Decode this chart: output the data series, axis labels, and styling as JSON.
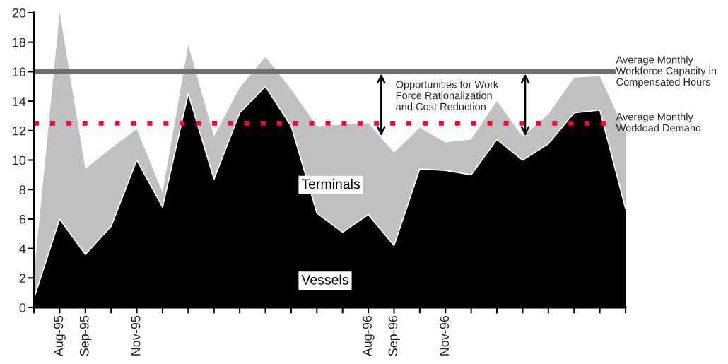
{
  "chart_data": {
    "type": "area",
    "stacked": true,
    "categories": [
      null,
      "Aug-95",
      "Sep-95",
      null,
      "Nov-95",
      null,
      null,
      null,
      null,
      null,
      null,
      null,
      null,
      "Aug-96",
      "Sep-96",
      null,
      "Nov-96",
      null,
      null,
      null,
      null,
      null,
      null,
      null
    ],
    "series": [
      {
        "name": "Vessels",
        "color": "#000000",
        "values": [
          0.6,
          6.0,
          3.6,
          5.5,
          10.0,
          6.8,
          14.5,
          8.7,
          13.2,
          15.0,
          12.3,
          6.4,
          5.1,
          6.3,
          4.2,
          9.4,
          9.3,
          9.0,
          11.4,
          10.0,
          11.1,
          13.2,
          13.4,
          6.7
        ]
      },
      {
        "name": "Terminals",
        "color": "#c0c0c0",
        "values": [
          1.6,
          14.0,
          5.8,
          5.3,
          2.1,
          1.0,
          3.3,
          2.9,
          1.7,
          2.0,
          2.5,
          5.9,
          7.3,
          6.2,
          6.3,
          2.8,
          1.9,
          2.4,
          2.6,
          1.6,
          2.0,
          2.4,
          2.3,
          5.2
        ]
      }
    ],
    "ylim": [
      0,
      20
    ],
    "yticks": [
      0,
      2,
      4,
      6,
      8,
      10,
      12,
      14,
      16,
      18,
      20
    ],
    "ref_lines": [
      {
        "axis": "y",
        "value": 16,
        "label": "Average Monthly\nWorkforce Capacity in\nCompensated Hours",
        "color": "#6e6e6e",
        "line_style": "solid"
      },
      {
        "axis": "y",
        "value": 12.5,
        "label": "Average Monthly\nWorkload Demand",
        "color": "#ff0033",
        "line_style": "dotted"
      }
    ],
    "annotations": [
      {
        "text": "Opportunities for Work\nForce Rationalization\nand Cost Reduction",
        "x": "Sep-96",
        "y": 16
      }
    ],
    "grid": false,
    "legend": false
  }
}
